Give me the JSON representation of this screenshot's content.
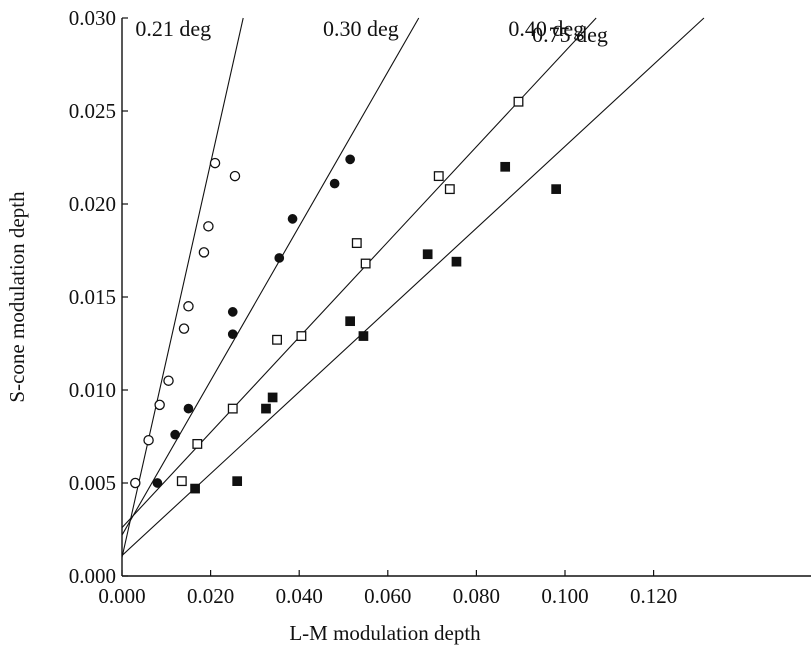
{
  "chart_data": {
    "type": "scatter",
    "title": "",
    "xlabel": "L-M modulation depth",
    "ylabel": "S-cone modulation depth",
    "xlim": [
      0,
      0.128
    ],
    "ylim": [
      0,
      0.03
    ],
    "x_ticks": [
      "0.000",
      "0.020",
      "0.040",
      "0.060",
      "0.080",
      "0.100",
      "0.120"
    ],
    "y_ticks": [
      "0.000",
      "0.005",
      "0.010",
      "0.015",
      "0.020",
      "0.025",
      "0.030"
    ],
    "grid": false,
    "series": [
      {
        "name": "0.21 deg",
        "marker": "open-circle",
        "points": [
          [
            0.003,
            0.005
          ],
          [
            0.006,
            0.0073
          ],
          [
            0.0085,
            0.0092
          ],
          [
            0.0105,
            0.0105
          ],
          [
            0.014,
            0.0133
          ],
          [
            0.015,
            0.0145
          ],
          [
            0.0185,
            0.0174
          ],
          [
            0.0195,
            0.0188
          ],
          [
            0.021,
            0.0222
          ],
          [
            0.0255,
            0.0215
          ]
        ],
        "fit": {
          "intercept": 0.001,
          "slope": 1.06
        }
      },
      {
        "name": "0.30 deg",
        "marker": "filled-circle",
        "points": [
          [
            0.008,
            0.005
          ],
          [
            0.012,
            0.0076
          ],
          [
            0.015,
            0.009
          ],
          [
            0.025,
            0.013
          ],
          [
            0.025,
            0.0142
          ],
          [
            0.0355,
            0.0171
          ],
          [
            0.0385,
            0.0192
          ],
          [
            0.048,
            0.0211
          ],
          [
            0.0515,
            0.0224
          ]
        ],
        "fit": {
          "intercept": 0.0022,
          "slope": 0.415
        }
      },
      {
        "name": "0.40 deg",
        "marker": "open-square",
        "points": [
          [
            0.0135,
            0.0051
          ],
          [
            0.017,
            0.0071
          ],
          [
            0.025,
            0.009
          ],
          [
            0.035,
            0.0127
          ],
          [
            0.0405,
            0.0129
          ],
          [
            0.053,
            0.0179
          ],
          [
            0.055,
            0.0168
          ],
          [
            0.0715,
            0.0215
          ],
          [
            0.074,
            0.0208
          ],
          [
            0.0895,
            0.0255
          ]
        ],
        "fit": {
          "intercept": 0.0026,
          "slope": 0.256
        }
      },
      {
        "name": "0.75 deg",
        "marker": "filled-square",
        "points": [
          [
            0.0165,
            0.0047
          ],
          [
            0.026,
            0.0051
          ],
          [
            0.0325,
            0.009
          ],
          [
            0.034,
            0.0096
          ],
          [
            0.0515,
            0.0137
          ],
          [
            0.0545,
            0.0129
          ],
          [
            0.069,
            0.0173
          ],
          [
            0.0755,
            0.0169
          ],
          [
            0.0865,
            0.022
          ],
          [
            0.098,
            0.0208
          ]
        ],
        "fit": {
          "intercept": 0.0011,
          "slope": 0.22
        }
      }
    ]
  }
}
